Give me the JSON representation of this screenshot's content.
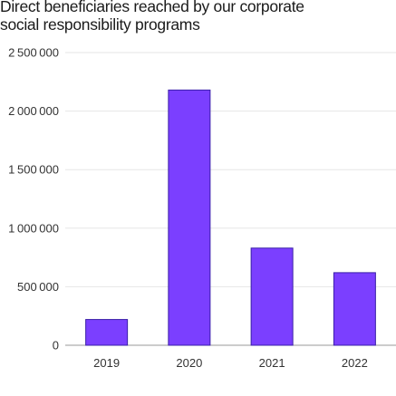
{
  "chart_data": {
    "type": "bar",
    "title_lines": [
      "Direct beneficiaries reached by our corporate",
      "social responsibility programs"
    ],
    "categories": [
      "2019",
      "2020",
      "2021",
      "2022"
    ],
    "values": [
      220000,
      2180000,
      830000,
      620000
    ],
    "ylim": [
      0,
      2500000
    ],
    "y_ticks": [
      0,
      500000,
      1000000,
      1500000,
      2000000,
      2500000
    ],
    "y_tick_labels": [
      "0",
      "500000",
      "1000000",
      "1500000",
      "2000000",
      "2500000"
    ],
    "grid": true,
    "colors": {
      "bar_fill": "#7b3fff",
      "bar_stroke": "#3a1fa8",
      "grid": "#e6e6e6",
      "axis": "#999999"
    }
  }
}
